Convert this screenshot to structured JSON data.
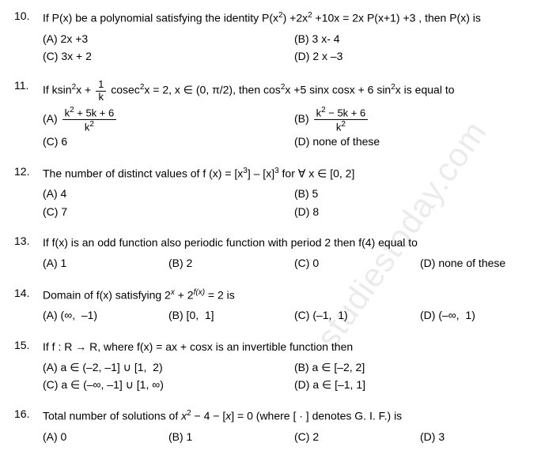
{
  "watermark": "studiestoday.com",
  "questions": [
    {
      "num": "10.",
      "stem_html": "If P(x) be a polynomial satisfying the identity P(x<sup>2</sup>) +2x<sup>2</sup> +10x = 2x P(x+1) +3 , then P(x) is",
      "layout": "col2",
      "opts": [
        "(A) 2x +3",
        "(B) 3 x- 4",
        "(C) 3x + 2",
        "(D) 2 x –3"
      ]
    },
    {
      "num": "11.",
      "stem_html": "If ksin<sup>2</sup>x + <span class='frac'><span class='num'>1</span><span class='den'>k</span></span> cosec<sup>2</sup>x = 2, x ∈ (0, π/2), then cos<sup>2</sup>x +5 sinx cosx + 6 sin<sup>2</sup>x is equal to",
      "layout": "col2",
      "opts": [
        "(A) <span class='frac'><span class='num'>k<sup>2</sup> + 5k + 6</span><span class='den'>k<sup>2</sup></span></span>",
        "(B) <span class='frac'><span class='num'>k<sup>2</sup> − 5k + 6</span><span class='den'>k<sup>2</sup></span></span>",
        "(C) 6",
        "(D) none of these"
      ]
    },
    {
      "num": "12.",
      "stem_html": "The number of distinct values of f (x) = [x<sup>3</sup>] – [x]<sup>3</sup> for ∀ x ∈ [0, 2]",
      "layout": "col2",
      "opts": [
        "(A) 4",
        "(B) 5",
        "(C) 7",
        "(D) 8"
      ]
    },
    {
      "num": "13.",
      "stem_html": "If f(x) is an odd function also periodic function with period 2 then f(4) equal to",
      "layout": "col4",
      "opts": [
        "(A) 1",
        "(B) 2",
        "(C) 0",
        "(D) none of these"
      ]
    },
    {
      "num": "14.",
      "stem_html": "Domain of f(x) satisfying 2<sup><i>x</i></sup> + 2<sup><i>f(x)</i></sup> = 2 is",
      "layout": "col4",
      "opts": [
        "(A) (∞,&nbsp;&nbsp;–1)",
        "(B) [0,&nbsp;&nbsp;1]",
        "(C) (–1,&nbsp;&nbsp;1)",
        "(D) (–∞,&nbsp;&nbsp;1)"
      ]
    },
    {
      "num": "15.",
      "stem_html": "If f : R → R, where f(x) = ax + cosx is an invertible function then",
      "layout": "col2",
      "opts": [
        "(A) a ∈ (–2, –1] ∪ [1,&nbsp;&nbsp;2)",
        "(B) a ∈ [–2, 2]",
        "(C) a ∈ (–∞, –1] ∪ [1, ∞)",
        "(D) a ∈ [–1, 1]"
      ]
    },
    {
      "num": "16.",
      "stem_html": "Total number of solutions of <i>x</i><sup>2</sup> − 4 − [<i>x</i>] = 0 (where [ · ] denotes G. I. F.) is",
      "layout": "col4",
      "opts": [
        "(A) 0",
        "(B) 1",
        "(C) 2",
        "(D) 3"
      ]
    }
  ]
}
